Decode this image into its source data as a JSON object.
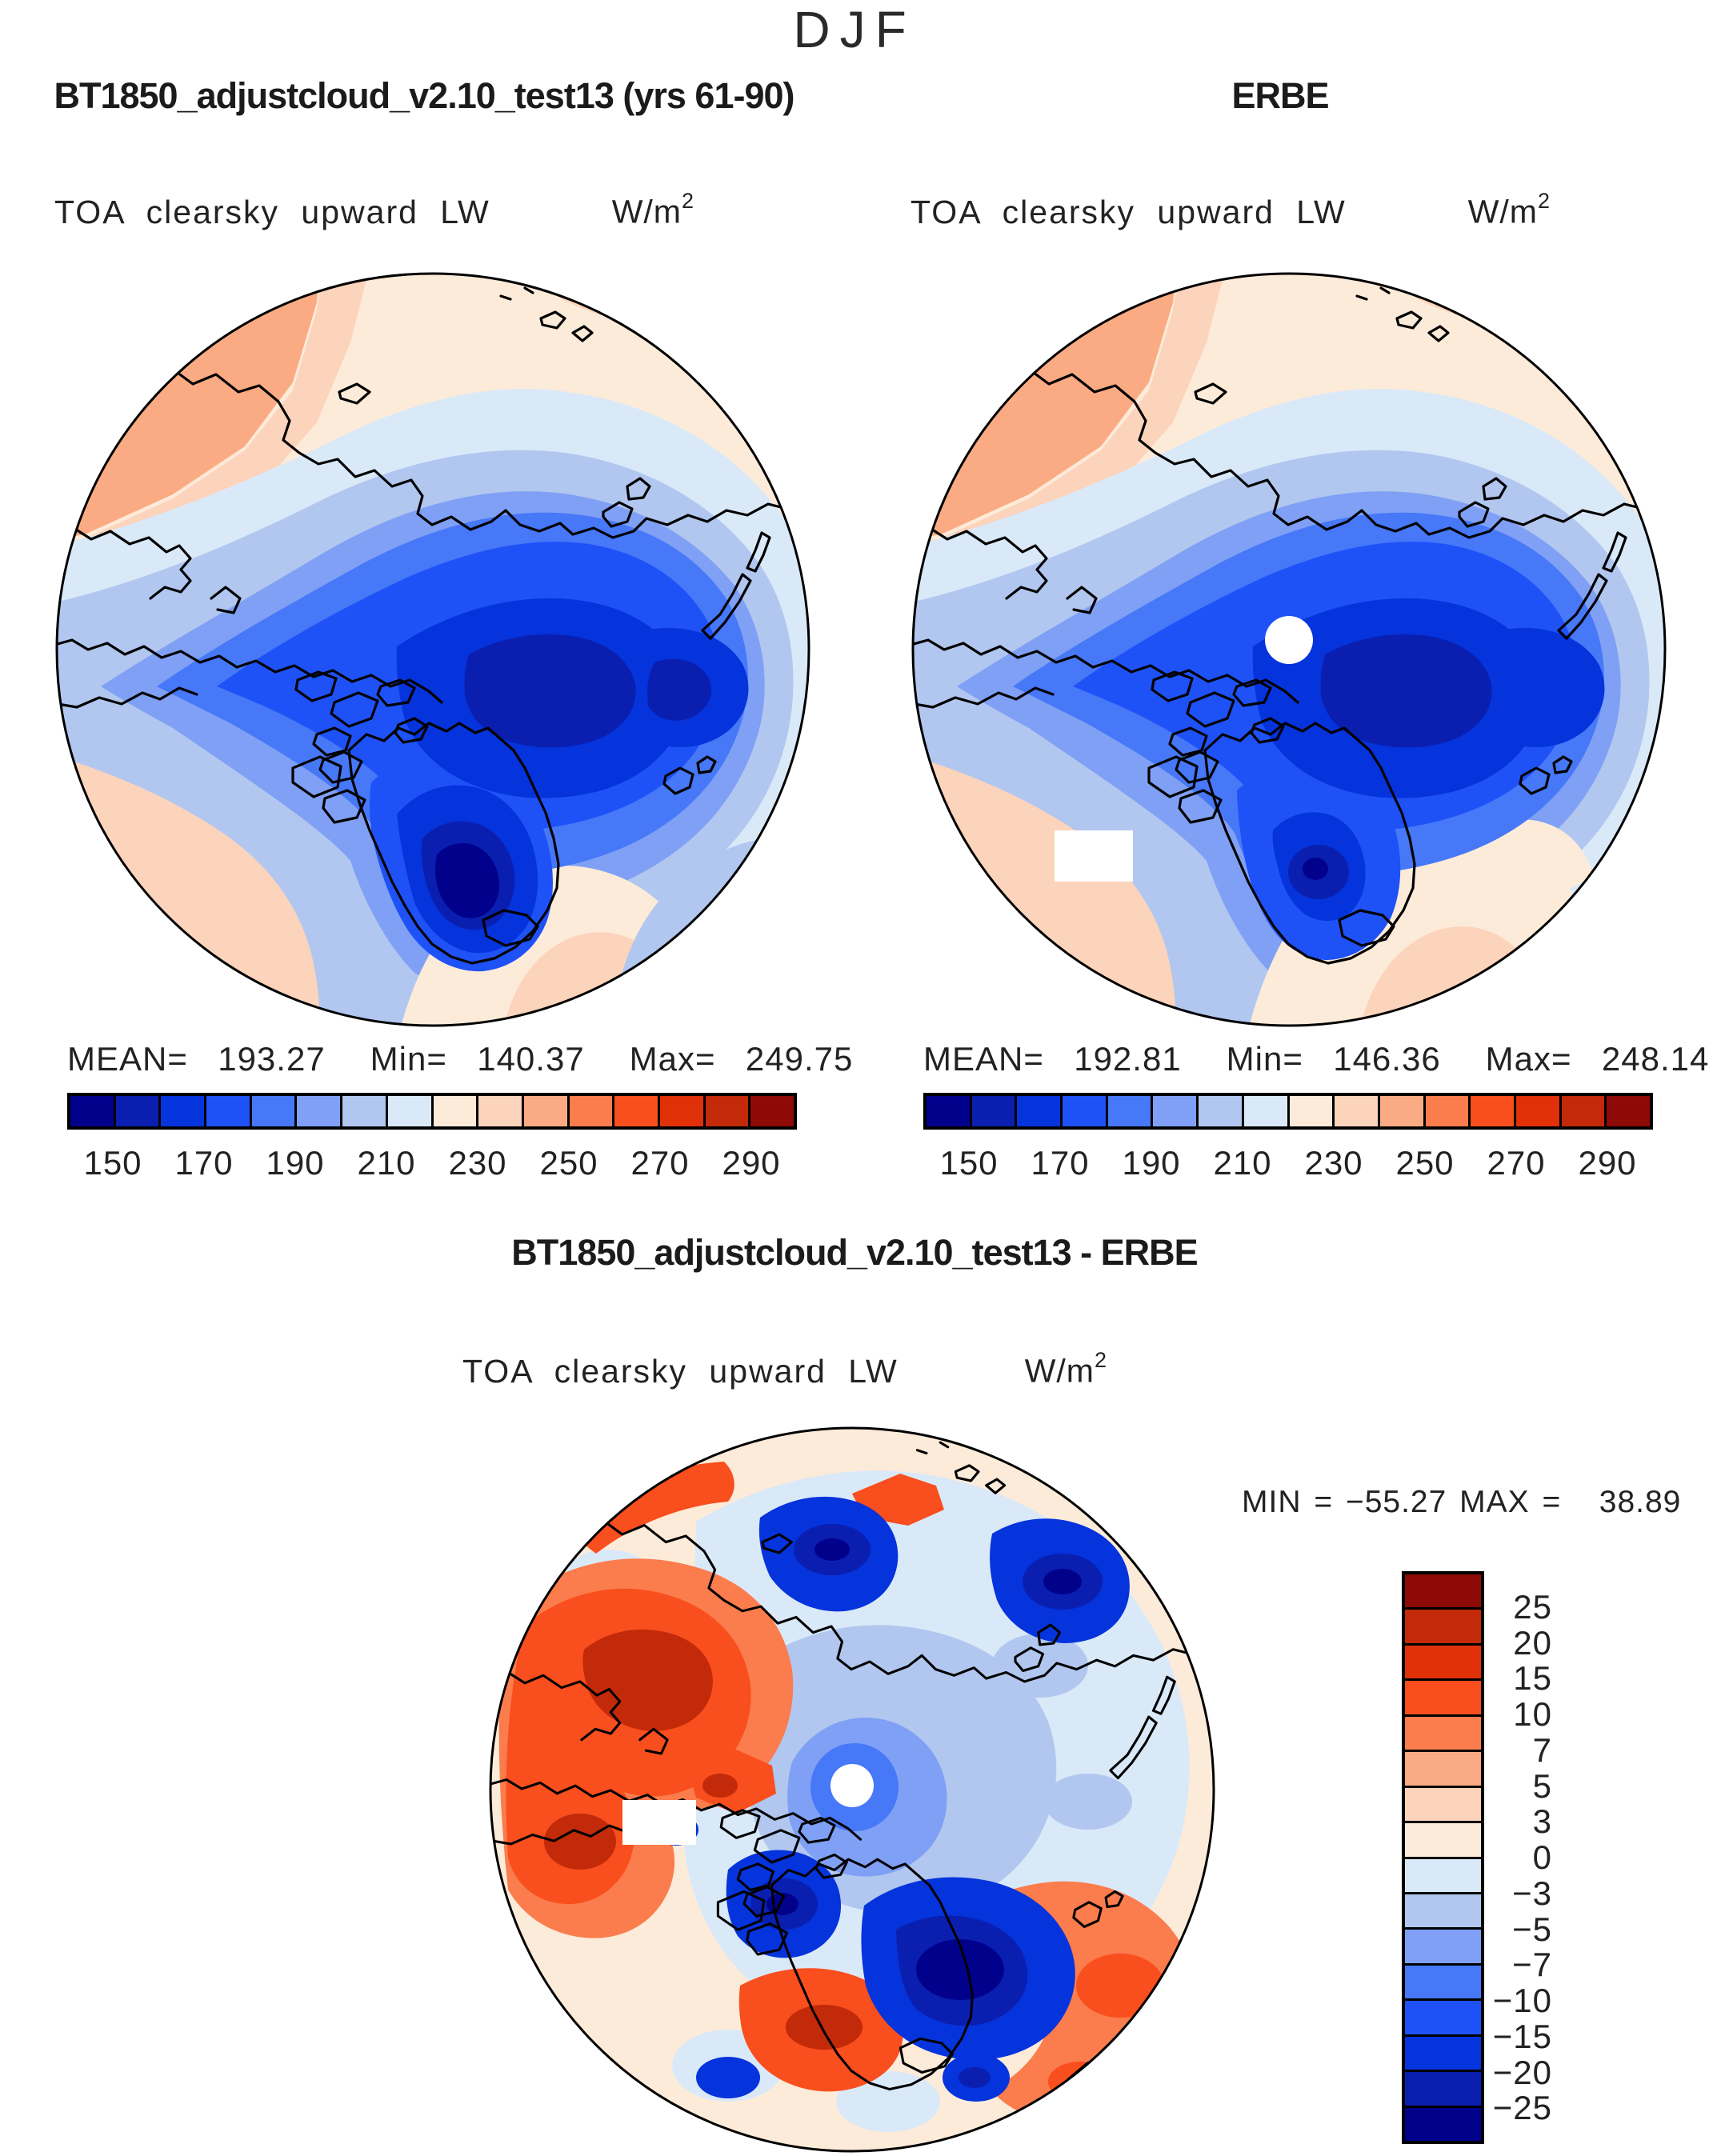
{
  "header": {
    "season": "DJF"
  },
  "units": {
    "base": "W/m",
    "exp": "2"
  },
  "panels": {
    "model": {
      "title": "BT1850_adjustcloud_v2.10_test13 (yrs 61-90)",
      "variable": "TOA clearsky upward LW",
      "stats": "MEAN=  193.27   Min=  140.37   Max=  249.75"
    },
    "obs": {
      "title": "ERBE",
      "variable": "TOA clearsky upward LW",
      "stats": "MEAN=  192.81   Min=  146.36   Max=  248.14"
    },
    "diff": {
      "title": "BT1850_adjustcloud_v2.10_test13 - ERBE",
      "variable": "TOA clearsky upward LW",
      "minmax": "MIN = −55.27 MAX =   38.89"
    }
  },
  "chart_data": {
    "type": "heatmap",
    "projection": "north-polar-stereographic",
    "season": "DJF",
    "variable": "TOA clearsky upward LW",
    "units": "W/m^2",
    "panels": [
      {
        "name": "model",
        "title": "BT1850_adjustcloud_v2.10_test13 (yrs 61-90)",
        "mean": 193.27,
        "min": 140.37,
        "max": 249.75
      },
      {
        "name": "obs",
        "title": "ERBE",
        "mean": 192.81,
        "min": 146.36,
        "max": 248.14
      },
      {
        "name": "diff",
        "title": "BT1850_adjustcloud_v2.10_test13 - ERBE",
        "min": -55.27,
        "max": 38.89
      }
    ],
    "abs_levels": [
      140,
      150,
      160,
      170,
      180,
      190,
      200,
      210,
      220,
      230,
      240,
      250,
      260,
      270,
      280,
      290,
      300
    ],
    "abs_ticks": [
      "150",
      "170",
      "190",
      "210",
      "230",
      "250",
      "270",
      "290"
    ],
    "diff_levels": [
      -30,
      -25,
      -20,
      -15,
      -10,
      -7,
      -5,
      -3,
      0,
      3,
      5,
      7,
      10,
      15,
      20,
      25,
      30
    ],
    "diff_ticks": [
      "25",
      "20",
      "15",
      "10",
      "7",
      "5",
      "3",
      "0",
      "−3",
      "−5",
      "−7",
      "−10",
      "−15",
      "−20",
      "−25"
    ],
    "palette": [
      "#01018B",
      "#0A1FB0",
      "#0533DC",
      "#1E52F7",
      "#4678F8",
      "#7FA0F4",
      "#B1C7F0",
      "#DAE9F8",
      "#FDEBD9",
      "#FCD3BB",
      "#FBAB83",
      "#FB7C4C",
      "#F94E1D",
      "#DF3008",
      "#C22A0A",
      "#8D0A06"
    ],
    "legend_position": {
      "abs": "below-horizontal",
      "diff": "right-vertical"
    }
  }
}
